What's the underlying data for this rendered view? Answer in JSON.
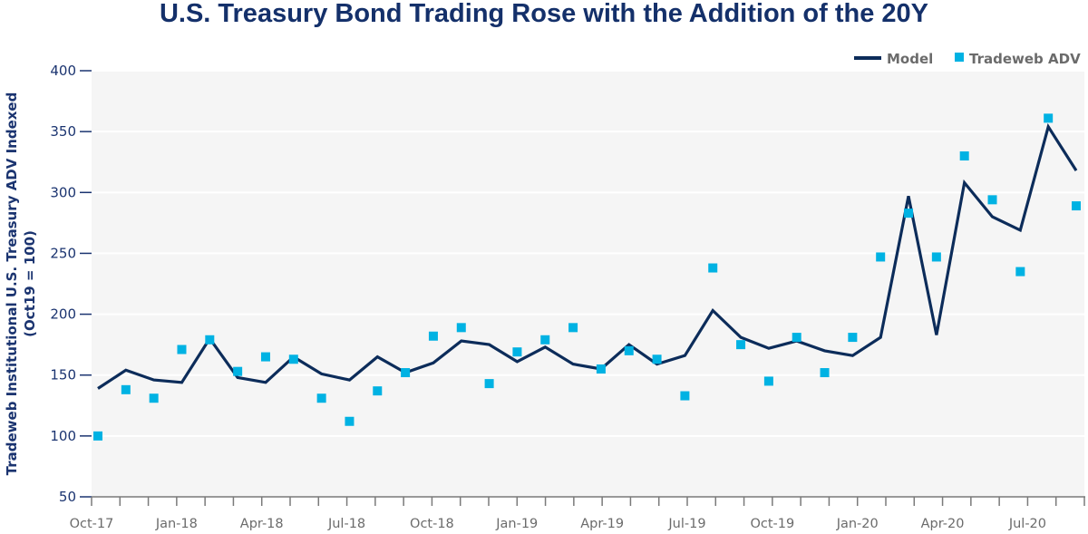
{
  "chart_data": {
    "type": "line",
    "title": "U.S. Treasury Bond Trading Rose with the Addition of the 20Y",
    "xlabel": "",
    "ylabel": [
      "Tradeweb Institutional U.S. Treasury ADV Indexed",
      "(Oct19 = 100)"
    ],
    "ylim": [
      50,
      400
    ],
    "yticks": [
      50,
      100,
      150,
      200,
      250,
      300,
      350,
      400
    ],
    "grid": true,
    "legend_position": "top-right",
    "x": [
      "Oct-17",
      "Nov-17",
      "Dec-17",
      "Jan-18",
      "Feb-18",
      "Mar-18",
      "Apr-18",
      "May-18",
      "Jun-18",
      "Jul-18",
      "Aug-18",
      "Sep-18",
      "Oct-18",
      "Nov-18",
      "Dec-18",
      "Jan-19",
      "Feb-19",
      "Mar-19",
      "Apr-19",
      "May-19",
      "Jun-19",
      "Jul-19",
      "Aug-19",
      "Sep-19",
      "Oct-19",
      "Nov-19",
      "Dec-19",
      "Jan-20",
      "Feb-20",
      "Mar-20",
      "Apr-20",
      "May-20",
      "Jun-20",
      "Jul-20",
      "Aug-20",
      "Sep-20"
    ],
    "xtick_labels": [
      {
        "index": 0,
        "label": "Oct-17"
      },
      {
        "index": 3,
        "label": "Jan-18"
      },
      {
        "index": 6,
        "label": "Apr-18"
      },
      {
        "index": 9,
        "label": "Jul-18"
      },
      {
        "index": 12,
        "label": "Oct-18"
      },
      {
        "index": 15,
        "label": "Jan-19"
      },
      {
        "index": 18,
        "label": "Apr-19"
      },
      {
        "index": 21,
        "label": "Jul-19"
      },
      {
        "index": 24,
        "label": "Oct-19"
      },
      {
        "index": 27,
        "label": "Jan-20"
      },
      {
        "index": 30,
        "label": "Apr-20"
      },
      {
        "index": 33,
        "label": "Jul-20"
      }
    ],
    "series": [
      {
        "name": "Model",
        "kind": "line",
        "color": "#0c2c5a",
        "values": [
          139,
          154,
          146,
          144,
          180,
          148,
          144,
          165,
          151,
          146,
          165,
          152,
          160,
          178,
          175,
          161,
          173,
          159,
          155,
          175,
          159,
          166,
          203,
          181,
          172,
          178,
          170,
          166,
          181,
          297,
          183,
          308,
          280,
          269,
          354,
          318
        ]
      },
      {
        "name": "Tradeweb ADV",
        "kind": "marker",
        "color": "#00b2e3",
        "values": [
          100,
          138,
          131,
          171,
          179,
          153,
          165,
          163,
          131,
          112,
          137,
          152,
          182,
          189,
          143,
          169,
          179,
          189,
          155,
          170,
          163,
          133,
          238,
          175,
          145,
          181,
          152,
          181,
          247,
          283,
          247,
          330,
          294,
          235,
          361,
          289
        ]
      }
    ]
  },
  "colors": {
    "title": "#14306a",
    "plot_background": "#f5f5f5",
    "gridline": "#ffffff",
    "axis": "#1b3470",
    "x_axis": "#7a7a7a"
  }
}
